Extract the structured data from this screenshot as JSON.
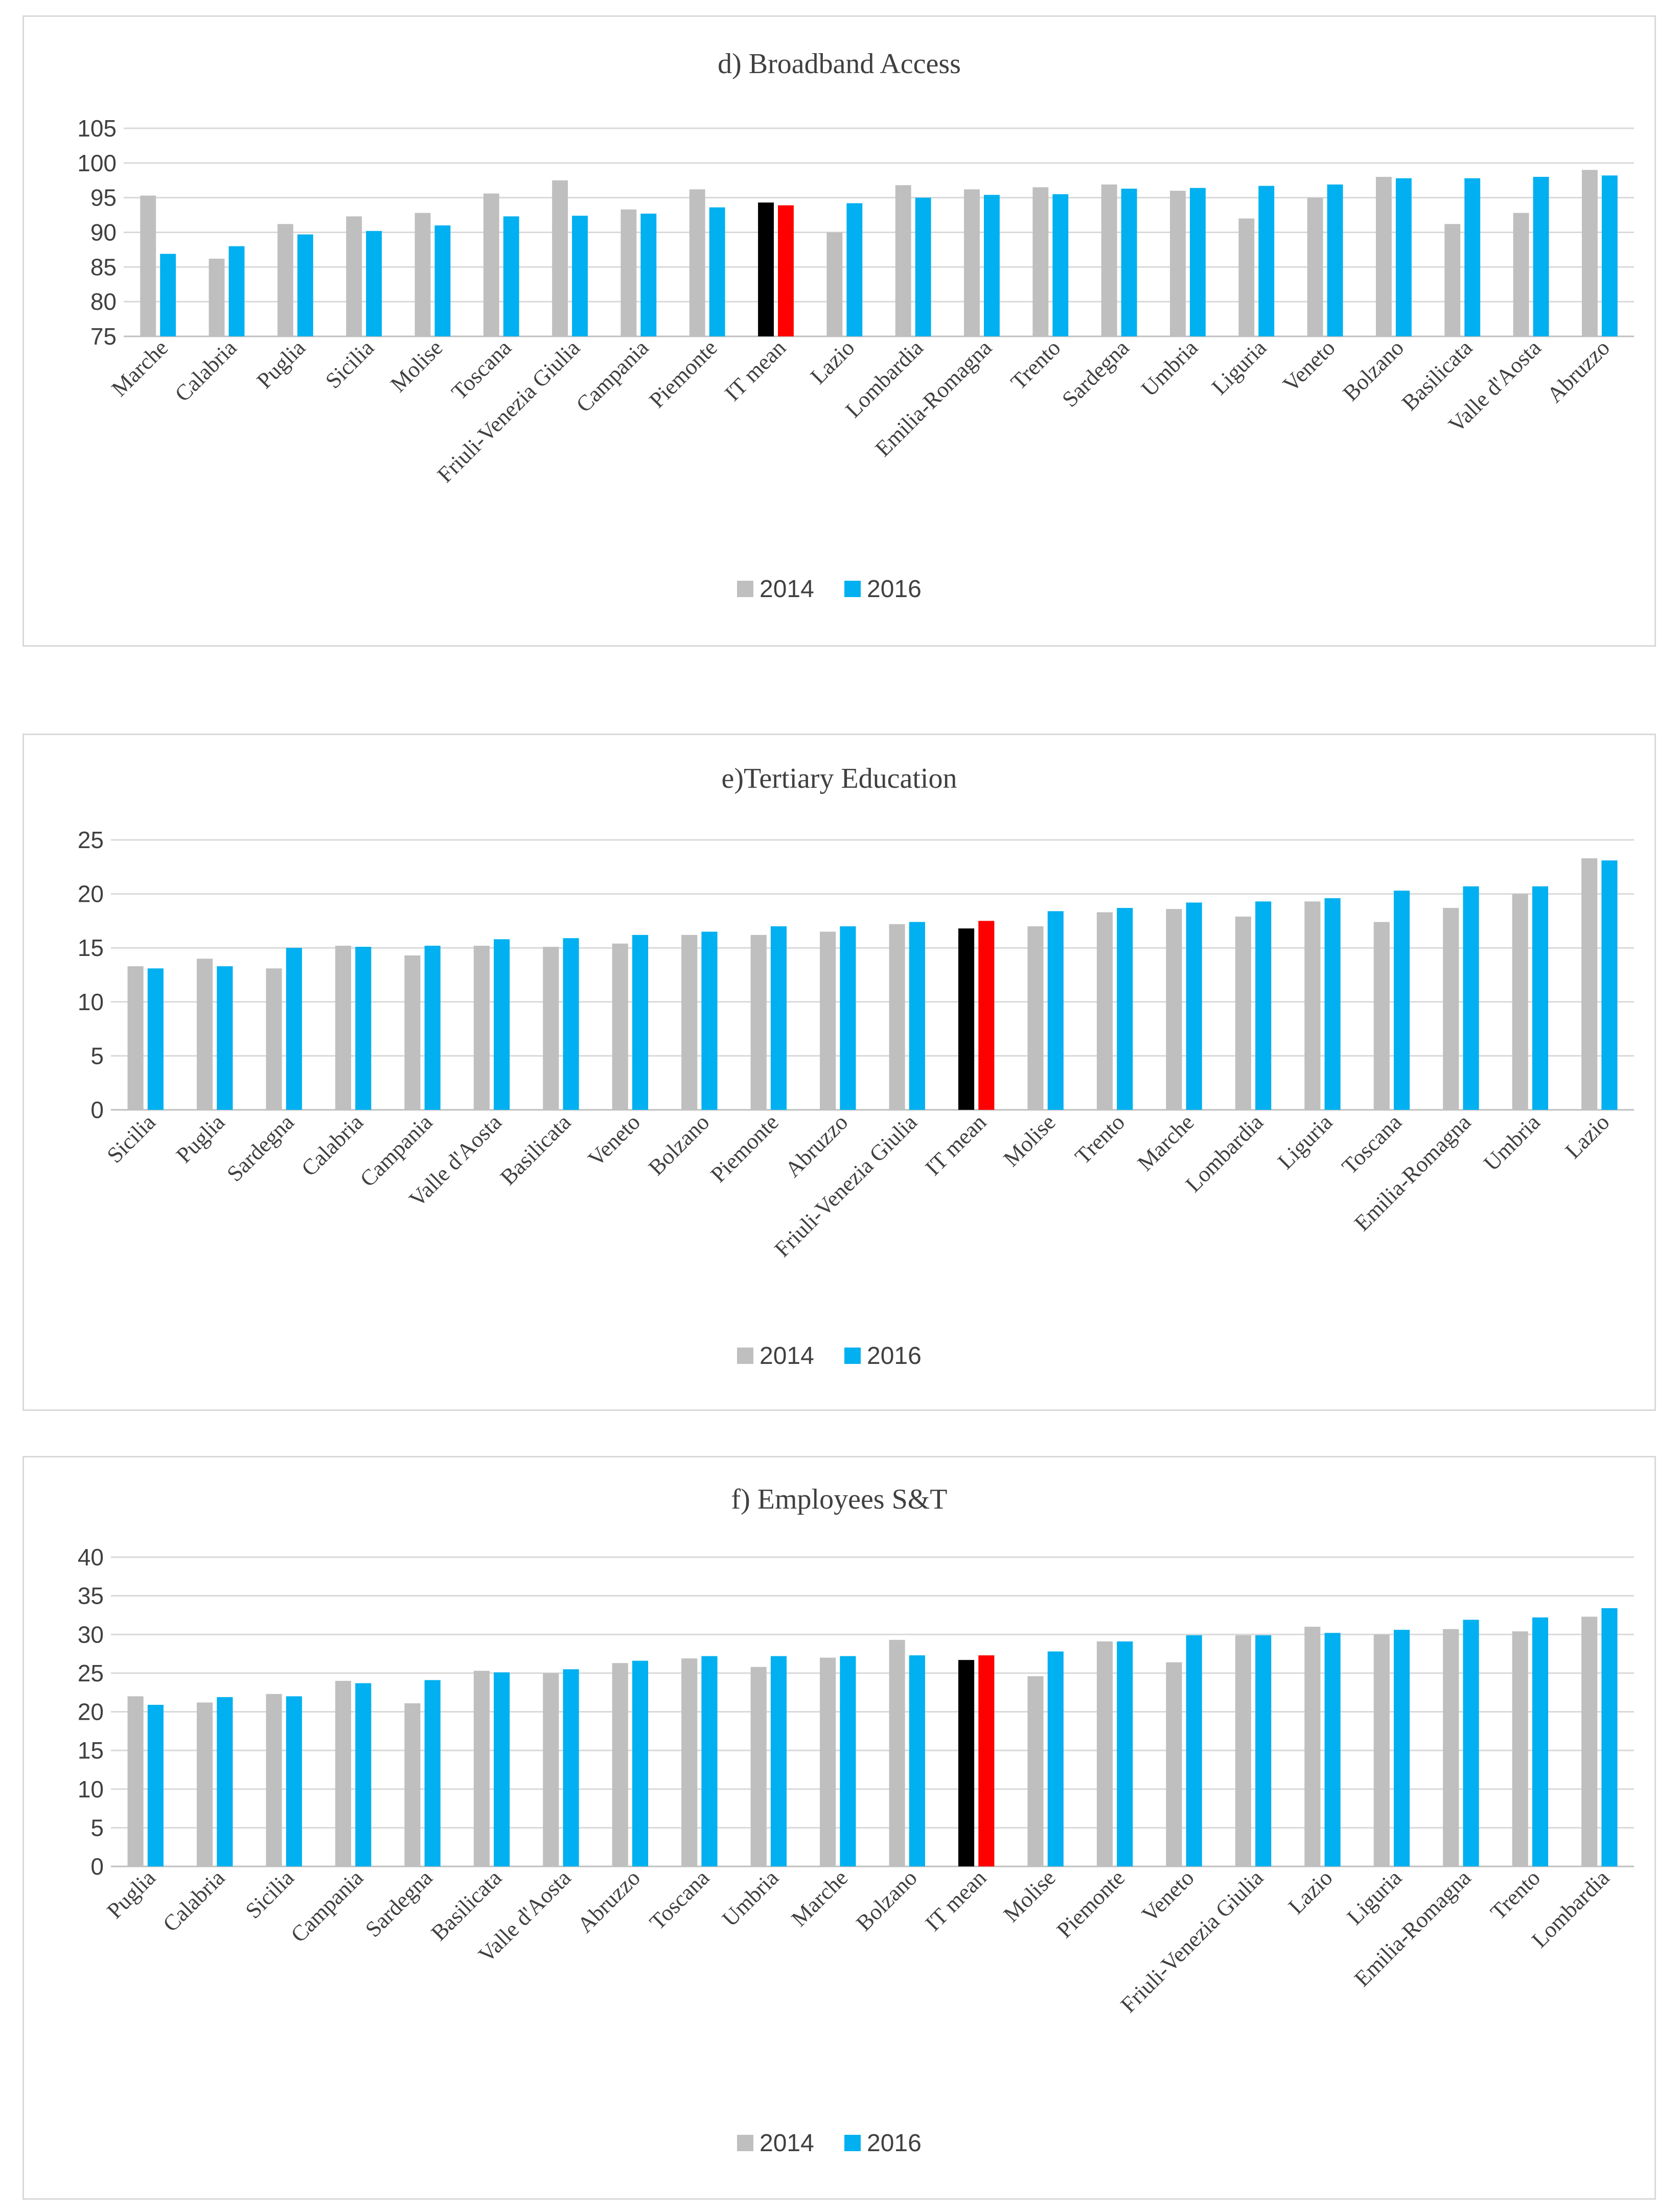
{
  "colors": {
    "bar_2014": "#BFBFBF",
    "bar_2016": "#00B0F0",
    "mean_2014": "#000000",
    "mean_2016": "#FF0000"
  },
  "chart_data": [
    {
      "type": "bar",
      "title": "d) Broadband Access",
      "categories": [
        "Marche",
        "Calabria",
        "Puglia",
        "Sicilia",
        "Molise",
        "Toscana",
        "Friuli-Venezia Giulia",
        "Campania",
        "Piemonte",
        "IT mean",
        "Lazio",
        "Lombardia",
        "Emilia-Romagna",
        "Trento",
        "Sardegna",
        "Umbria",
        "Liguria",
        "Veneto",
        "Bolzano",
        "Basilicata",
        "Valle d'Aosta",
        "Abruzzo"
      ],
      "series": [
        {
          "name": "2014",
          "values": [
            95.3,
            86.2,
            91.2,
            92.3,
            92.8,
            95.6,
            97.5,
            93.3,
            96.2,
            94.3,
            90.0,
            96.8,
            96.2,
            96.5,
            96.9,
            96.0,
            92.0,
            95.0,
            98.0,
            91.2,
            92.8,
            99.0
          ]
        },
        {
          "name": "2016",
          "values": [
            86.9,
            88.0,
            89.7,
            90.2,
            91.0,
            92.3,
            92.4,
            92.7,
            93.6,
            93.9,
            94.2,
            95.0,
            95.4,
            95.5,
            96.3,
            96.4,
            96.7,
            96.9,
            97.8,
            97.8,
            98.0,
            98.2
          ]
        }
      ],
      "highlight_category": "IT mean",
      "ylim": [
        75,
        105
      ],
      "yticks": [
        75,
        80,
        85,
        90,
        95,
        100,
        105
      ],
      "xlabel": "",
      "ylabel": "",
      "grid": true,
      "legend": [
        "2014",
        "2016"
      ],
      "legend_position": "bottom"
    },
    {
      "type": "bar",
      "title": "e)Tertiary Education",
      "categories": [
        "Sicilia",
        "Puglia",
        "Sardegna",
        "Calabria",
        "Campania",
        "Valle d'Aosta",
        "Basilicata",
        "Veneto",
        "Bolzano",
        "Piemonte",
        "Abruzzo",
        "Friuli-Venezia Giulia",
        "IT mean",
        "Molise",
        "Trento",
        "Marche",
        "Lombardia",
        "Liguria",
        "Toscana",
        "Emilia-Romagna",
        "Umbria",
        "Lazio"
      ],
      "series": [
        {
          "name": "2014",
          "values": [
            13.3,
            14.0,
            13.1,
            15.2,
            14.3,
            15.2,
            15.1,
            15.4,
            16.2,
            16.2,
            16.5,
            17.2,
            16.8,
            17.0,
            18.3,
            18.6,
            17.9,
            19.3,
            17.4,
            18.7,
            20.0,
            23.3
          ]
        },
        {
          "name": "2016",
          "values": [
            13.1,
            13.3,
            15.0,
            15.1,
            15.2,
            15.8,
            15.9,
            16.2,
            16.5,
            17.0,
            17.0,
            17.4,
            17.5,
            18.4,
            18.7,
            19.2,
            19.3,
            19.6,
            20.3,
            20.7,
            20.7,
            23.1
          ]
        }
      ],
      "highlight_category": "IT mean",
      "ylim": [
        0,
        25
      ],
      "yticks": [
        0,
        5,
        10,
        15,
        20,
        25
      ],
      "xlabel": "",
      "ylabel": "",
      "grid": true,
      "legend": [
        "2014",
        "2016"
      ],
      "legend_position": "bottom"
    },
    {
      "type": "bar",
      "title": "f) Employees S&T",
      "categories": [
        "Puglia",
        "Calabria",
        "Sicilia",
        "Campania",
        "Sardegna",
        "Basilicata",
        "Valle d'Aosta",
        "Abruzzo",
        "Toscana",
        "Umbria",
        "Marche",
        "Bolzano",
        "IT mean",
        "Molise",
        "Piemonte",
        "Veneto",
        "Friuli-Venezia Giulia",
        "Lazio",
        "Liguria",
        "Emilia-Romagna",
        "Trento",
        "Lombardia"
      ],
      "series": [
        {
          "name": "2014",
          "values": [
            22.0,
            21.2,
            22.3,
            24.0,
            21.1,
            25.3,
            25.0,
            26.3,
            26.9,
            25.8,
            27.0,
            29.3,
            26.7,
            24.6,
            29.1,
            26.4,
            29.9,
            31.0,
            30.0,
            30.7,
            30.4,
            32.3
          ]
        },
        {
          "name": "2016",
          "values": [
            20.9,
            21.9,
            22.0,
            23.7,
            24.1,
            25.1,
            25.5,
            26.6,
            27.2,
            27.2,
            27.2,
            27.3,
            27.3,
            27.8,
            29.1,
            29.9,
            29.9,
            30.2,
            30.6,
            31.9,
            32.2,
            33.4
          ]
        }
      ],
      "highlight_category": "IT mean",
      "ylim": [
        0,
        40
      ],
      "yticks": [
        0,
        5,
        10,
        15,
        20,
        25,
        30,
        35,
        40
      ],
      "xlabel": "",
      "ylabel": "",
      "grid": true,
      "legend": [
        "2014",
        "2016"
      ],
      "legend_position": "bottom"
    }
  ]
}
